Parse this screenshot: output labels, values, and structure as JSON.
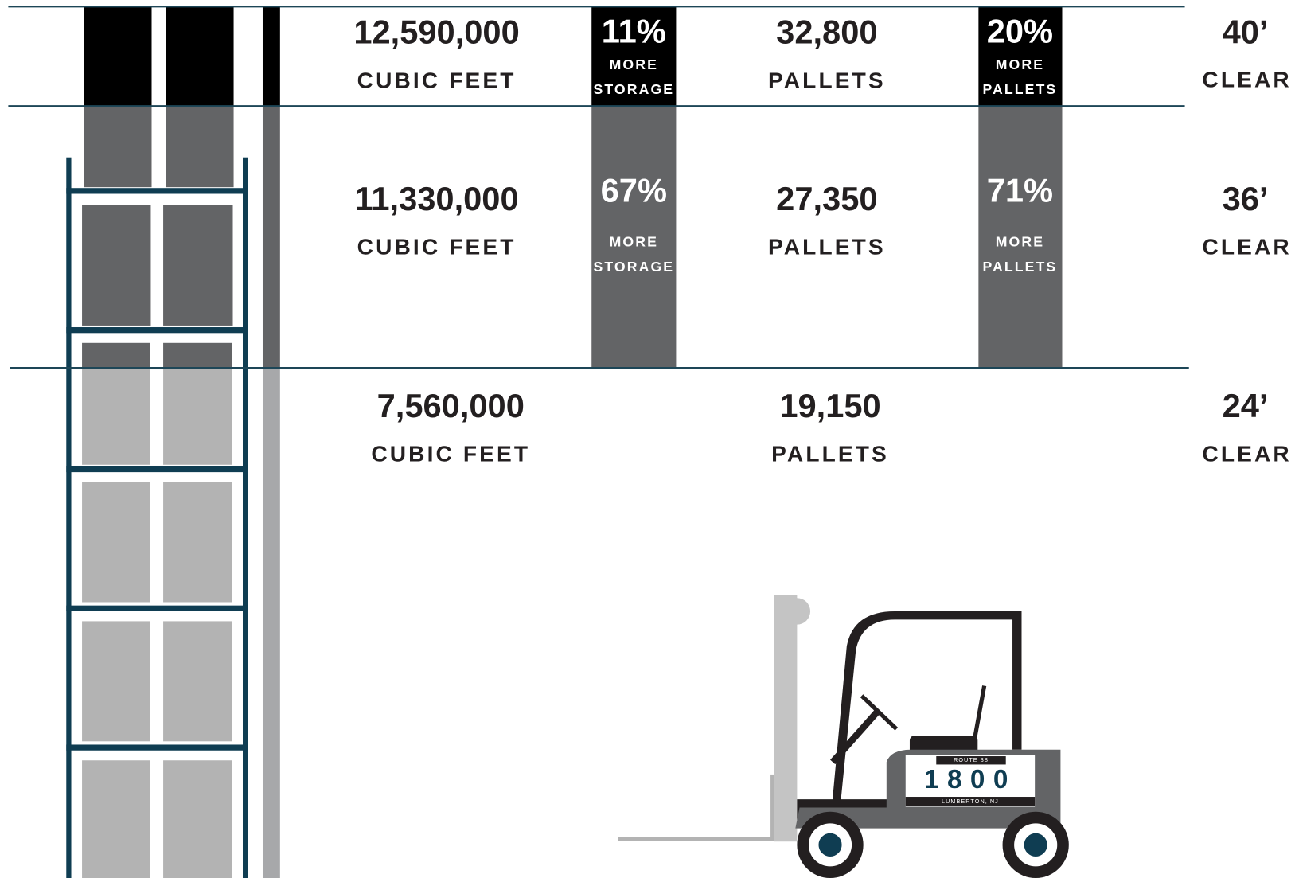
{
  "rows": [
    {
      "volume": "12,590,000",
      "volume_unit": "CUBIC FEET",
      "storage_increase": {
        "value": "11%",
        "lines": [
          "MORE",
          "STORAGE"
        ]
      },
      "pallets": "32,800",
      "pallets_unit": "PALLETS",
      "pallets_increase": {
        "value": "20%",
        "lines": [
          "MORE",
          "PALLETS"
        ]
      },
      "clear_height": "40’",
      "clear_unit": "CLEAR"
    },
    {
      "volume": "11,330,000",
      "volume_unit": "CUBIC FEET",
      "storage_increase": {
        "value": "67%",
        "lines": [
          "MORE",
          "STORAGE"
        ]
      },
      "pallets": "27,350",
      "pallets_unit": "PALLETS",
      "pallets_increase": {
        "value": "71%",
        "lines": [
          "MORE",
          "PALLETS"
        ]
      },
      "clear_height": "36’",
      "clear_unit": "CLEAR"
    },
    {
      "volume": "7,560,000",
      "volume_unit": "CUBIC FEET",
      "pallets": "19,150",
      "pallets_unit": "PALLETS",
      "clear_height": "24’",
      "clear_unit": "CLEAR"
    }
  ],
  "forklift": {
    "plate_top": "ROUTE 38",
    "plate_number": "1800",
    "plate_bottom": "LUMBERTON, NJ"
  }
}
